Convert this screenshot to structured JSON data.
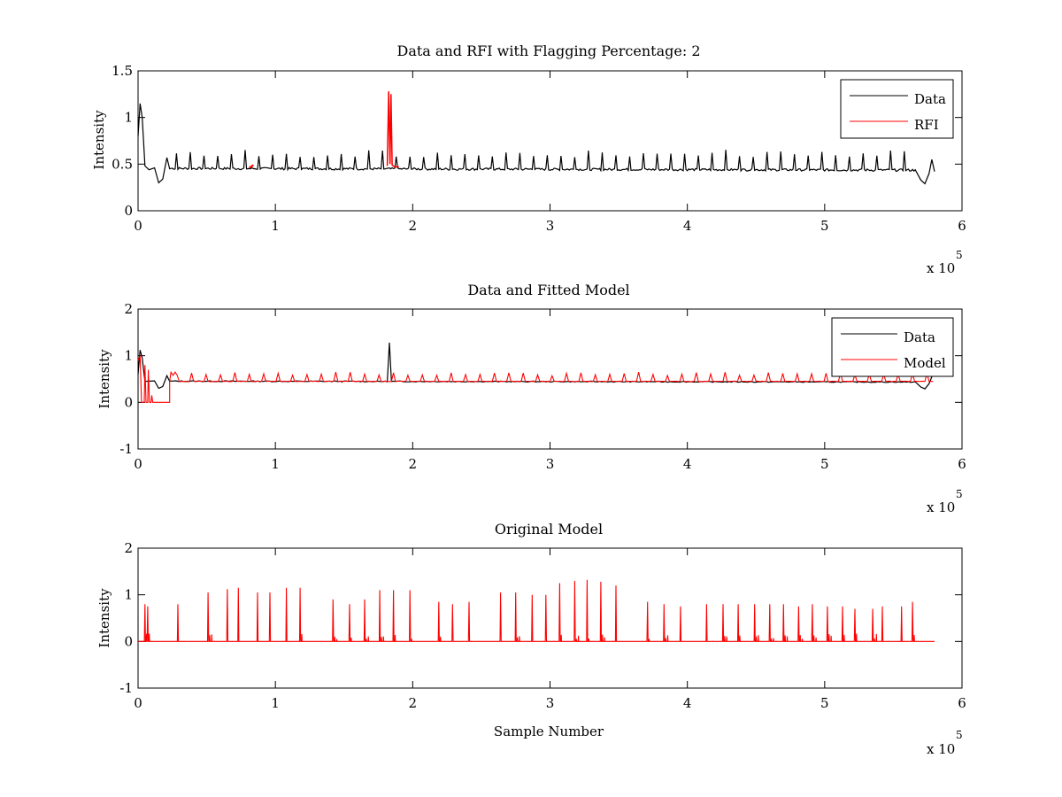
{
  "chart_data": [
    {
      "type": "line",
      "title": "Data and RFI with Flagging Percentage: 2",
      "xlabel": "",
      "ylabel": "Intensity",
      "xlim": [
        0,
        600000
      ],
      "ylim": [
        0,
        1.5
      ],
      "xticks": [
        "0",
        "1",
        "2",
        "3",
        "4",
        "5",
        "6"
      ],
      "yticks": [
        "0",
        "0.5",
        "1",
        "1.5"
      ],
      "xexponent": {
        "prefix": "x 10",
        "power": "5"
      },
      "legend": {
        "position": "top-right",
        "entries": [
          "Data",
          "RFI"
        ]
      },
      "grid": false,
      "series": [
        {
          "name": "Data",
          "color": "#000000",
          "baseline": 0.455,
          "spike_height": 0.6,
          "spike_spacing": 10000,
          "spike_start": 12000,
          "end_x": 580000,
          "features": [
            {
              "x": 0,
              "y": 0.8
            },
            {
              "x": 2000,
              "y": 1.15
            },
            {
              "x": 5000,
              "y": 0.5
            },
            {
              "x": 15000,
              "y": 0.3
            },
            {
              "x": 21000,
              "y": 0.57
            },
            {
              "x": 572000,
              "y": 0.29
            },
            {
              "x": 578000,
              "y": 0.55
            }
          ]
        },
        {
          "name": "RFI",
          "color": "#ff0000",
          "points": [
            {
              "x": 183000,
              "y": 1.28
            },
            {
              "x": 185000,
              "y": 1.25
            },
            {
              "x": 82000,
              "y": 0.48
            }
          ]
        }
      ]
    },
    {
      "type": "line",
      "title": "Data and Fitted Model",
      "xlabel": "",
      "ylabel": "Intensity",
      "xlim": [
        0,
        600000
      ],
      "ylim": [
        -1,
        2
      ],
      "xticks": [
        "0",
        "1",
        "2",
        "3",
        "4",
        "5",
        "6"
      ],
      "yticks": [
        "-1",
        "0",
        "1",
        "2"
      ],
      "xexponent": {
        "prefix": "x 10",
        "power": "5"
      },
      "legend": {
        "position": "top-right",
        "entries": [
          "Data",
          "Model"
        ]
      },
      "grid": false,
      "series": [
        {
          "name": "Data",
          "color": "#000000",
          "baseline": 0.455,
          "spike_x": 183000,
          "spike_y": 1.28
        },
        {
          "name": "Model",
          "color": "#ff0000",
          "baseline": 0.45,
          "step_end_x": 23000,
          "step_y": 0.0,
          "spike_height": 0.6
        }
      ]
    },
    {
      "type": "line",
      "title": "Original Model",
      "xlabel": "Sample Number",
      "ylabel": "Intensity",
      "xlim": [
        0,
        600000
      ],
      "ylim": [
        -1,
        2
      ],
      "xticks": [
        "0",
        "1",
        "2",
        "3",
        "4",
        "5",
        "6"
      ],
      "yticks": [
        "-1",
        "0",
        "1",
        "2"
      ],
      "xexponent": {
        "prefix": "x 10",
        "power": "5"
      },
      "grid": false,
      "series": [
        {
          "color": "#ff0000",
          "baseline": 0,
          "end_x": 580000,
          "peaks": [
            {
              "x": 5000,
              "y": 0.8
            },
            {
              "x": 7000,
              "y": 0.75
            },
            {
              "x": 29000,
              "y": 0.8
            },
            {
              "x": 51000,
              "y": 1.05
            },
            {
              "x": 65000,
              "y": 1.12
            },
            {
              "x": 73000,
              "y": 1.15
            },
            {
              "x": 87000,
              "y": 1.05
            },
            {
              "x": 96000,
              "y": 1.05
            },
            {
              "x": 108000,
              "y": 1.15
            },
            {
              "x": 118000,
              "y": 1.15
            },
            {
              "x": 142000,
              "y": 0.9
            },
            {
              "x": 154000,
              "y": 0.8
            },
            {
              "x": 165000,
              "y": 0.9
            },
            {
              "x": 176000,
              "y": 1.1
            },
            {
              "x": 186000,
              "y": 1.1
            },
            {
              "x": 198000,
              "y": 1.1
            },
            {
              "x": 219000,
              "y": 0.85
            },
            {
              "x": 229000,
              "y": 0.8
            },
            {
              "x": 241000,
              "y": 0.85
            },
            {
              "x": 264000,
              "y": 1.05
            },
            {
              "x": 275000,
              "y": 1.05
            },
            {
              "x": 287000,
              "y": 1.0
            },
            {
              "x": 297000,
              "y": 1.0
            },
            {
              "x": 307000,
              "y": 1.25
            },
            {
              "x": 318000,
              "y": 1.3
            },
            {
              "x": 327000,
              "y": 1.32
            },
            {
              "x": 337000,
              "y": 1.28
            },
            {
              "x": 348000,
              "y": 1.2
            },
            {
              "x": 371000,
              "y": 0.85
            },
            {
              "x": 383000,
              "y": 0.8
            },
            {
              "x": 395000,
              "y": 0.75
            },
            {
              "x": 414000,
              "y": 0.8
            },
            {
              "x": 426000,
              "y": 0.8
            },
            {
              "x": 437000,
              "y": 0.8
            },
            {
              "x": 449000,
              "y": 0.8
            },
            {
              "x": 460000,
              "y": 0.8
            },
            {
              "x": 470000,
              "y": 0.8
            },
            {
              "x": 481000,
              "y": 0.75
            },
            {
              "x": 491000,
              "y": 0.8
            },
            {
              "x": 502000,
              "y": 0.75
            },
            {
              "x": 513000,
              "y": 0.75
            },
            {
              "x": 522000,
              "y": 0.7
            },
            {
              "x": 535000,
              "y": 0.7
            },
            {
              "x": 542000,
              "y": 0.75
            },
            {
              "x": 556000,
              "y": 0.75
            },
            {
              "x": 564000,
              "y": 0.85
            }
          ]
        }
      ]
    }
  ]
}
